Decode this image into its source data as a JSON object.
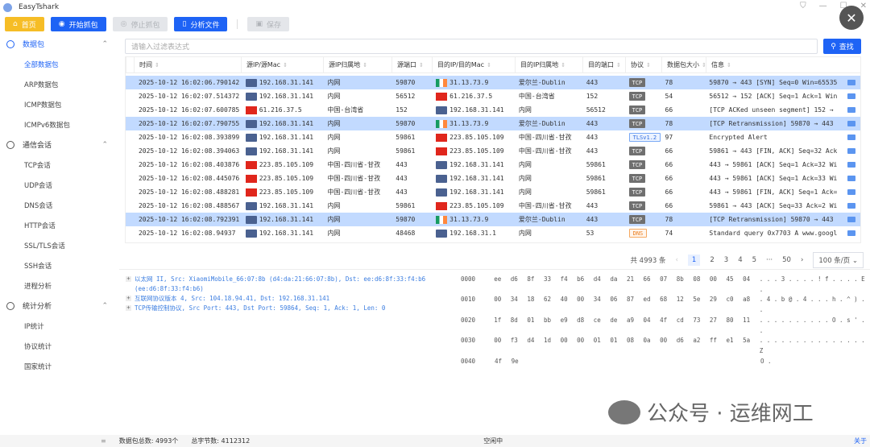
{
  "app": {
    "title": "EasyTshark"
  },
  "toolbar": {
    "home": "首页",
    "start": "开始抓包",
    "stop": "停止抓包",
    "analyze": "分析文件",
    "save": "保存"
  },
  "sidebar": {
    "groups": [
      {
        "label": "数据包",
        "active": true,
        "items": [
          "全部数据包",
          "ARP数据包",
          "ICMP数据包",
          "ICMPv6数据包"
        ]
      },
      {
        "label": "通信会话",
        "items": [
          "TCP会话",
          "UDP会话",
          "DNS会话",
          "HTTP会话",
          "SSL/TLS会话",
          "SSH会话",
          "进程分析"
        ]
      },
      {
        "label": "统计分析",
        "items": [
          "IP统计",
          "协议统计",
          "国家统计"
        ]
      }
    ]
  },
  "filter": {
    "placeholder": "请输入过滤表达式",
    "search": "查找"
  },
  "table": {
    "columns": [
      "时间",
      "源IP/源Mac",
      "源IP归属地",
      "源端口",
      "目的IP/目的Mac",
      "目的IP归属地",
      "目的端口",
      "协议",
      "数据包大小",
      "信息"
    ],
    "rows": [
      [
        "2025-10-12 16:02:06.790142",
        "pc",
        "192.168.31.141",
        "内网",
        "59870",
        "ie",
        "31.13.73.9",
        "爱尔兰-Dublin",
        "443",
        "TCP",
        "78",
        "59870 → 443 [SYN] Seq=0 Win=65535",
        true
      ],
      [
        "2025-10-12 16:02:07.514372",
        "pc",
        "192.168.31.141",
        "内网",
        "56512",
        "cn",
        "61.216.37.5",
        "中国-台湾省",
        "152",
        "TCP",
        "54",
        "56512 → 152 [ACK] Seq=1 Ack=1 Win",
        false
      ],
      [
        "2025-10-12 16:02:07.600785",
        "cn",
        "61.216.37.5",
        "中国-台湾省",
        "152",
        "pc",
        "192.168.31.141",
        "内网",
        "56512",
        "TCP",
        "66",
        "[TCP ACKed unseen segment] 152 →",
        false
      ],
      [
        "2025-10-12 16:02:07.790755",
        "pc",
        "192.168.31.141",
        "内网",
        "59870",
        "ie",
        "31.13.73.9",
        "爱尔兰-Dublin",
        "443",
        "TCP",
        "78",
        "[TCP Retransmission] 59870 → 443",
        true
      ],
      [
        "2025-10-12 16:02:08.393899",
        "pc",
        "192.168.31.141",
        "内网",
        "59861",
        "cn",
        "223.85.105.109",
        "中国-四川省-甘孜",
        "443",
        "TLSv1.2",
        "97",
        "Encrypted Alert",
        false
      ],
      [
        "2025-10-12 16:02:08.394063",
        "pc",
        "192.168.31.141",
        "内网",
        "59861",
        "cn",
        "223.85.105.109",
        "中国-四川省-甘孜",
        "443",
        "TCP",
        "66",
        "59861 → 443 [FIN, ACK] Seq=32 Ack",
        false
      ],
      [
        "2025-10-12 16:02:08.403876",
        "cn",
        "223.85.105.109",
        "中国-四川省-甘孜",
        "443",
        "pc",
        "192.168.31.141",
        "内网",
        "59861",
        "TCP",
        "66",
        "443 → 59861 [ACK] Seq=1 Ack=32 Wi",
        false
      ],
      [
        "2025-10-12 16:02:08.445076",
        "cn",
        "223.85.105.109",
        "中国-四川省-甘孜",
        "443",
        "pc",
        "192.168.31.141",
        "内网",
        "59861",
        "TCP",
        "66",
        "443 → 59861 [ACK] Seq=1 Ack=33 Wi",
        false
      ],
      [
        "2025-10-12 16:02:08.488281",
        "cn",
        "223.85.105.109",
        "中国-四川省-甘孜",
        "443",
        "pc",
        "192.168.31.141",
        "内网",
        "59861",
        "TCP",
        "66",
        "443 → 59861 [FIN, ACK] Seq=1 Ack=",
        false
      ],
      [
        "2025-10-12 16:02:08.488567",
        "pc",
        "192.168.31.141",
        "内网",
        "59861",
        "cn",
        "223.85.105.109",
        "中国-四川省-甘孜",
        "443",
        "TCP",
        "66",
        "59861 → 443 [ACK] Seq=33 Ack=2 Wi",
        false
      ],
      [
        "2025-10-12 16:02:08.792391",
        "pc",
        "192.168.31.141",
        "内网",
        "59870",
        "ie",
        "31.13.73.9",
        "爱尔兰-Dublin",
        "443",
        "TCP",
        "78",
        "[TCP Retransmission] 59870 → 443",
        true
      ],
      [
        "2025-10-12 16:02:08.94937",
        "pc",
        "192.168.31.141",
        "内网",
        "48468",
        "pc",
        "192.168.31.1",
        "内网",
        "53",
        "DNS",
        "74",
        "Standard query 0x7703 A www.googl",
        false
      ]
    ]
  },
  "pager": {
    "total": "共 4993 条",
    "pages": [
      "1",
      "2",
      "3",
      "4",
      "5",
      "···",
      "50"
    ],
    "current": "1",
    "size": "100 条/页"
  },
  "tree": [
    "以太网 II, Src: XiaomiMobile_66:07:8b (d4:da:21:66:07:8b), Dst: ee:d6:8f:33:f4:b6 (ee:d6:8f:33:f4:b6)",
    "互联网协议版本 4, Src: 104.18.94.41, Dst: 192.168.31.141",
    "TCP传输控制协议, Src Port: 443, Dst Port: 59864, Seq: 1, Ack: 1, Len: 0"
  ],
  "hex": [
    [
      "0000",
      "ee d6 8f 33 f4 b6 d4 da 21 66 07 8b 08 00 45 04",
      ". . . 3 . . . . ! f . . . . E ."
    ],
    [
      "0010",
      "00 34 18 62 40 00 34 06 87 ed 68 12 5e 29 c0 a8",
      ". 4 . b @ . 4 . . . h . ^ ) . ."
    ],
    [
      "0020",
      "1f 8d 01 bb e9 d8 ce de a9 04 4f cd 73 27 80 11",
      ". . . . . . . . . . O . s ' . ."
    ],
    [
      "0030",
      "00 f3 d4 1d 00 00 01 01 08 0a 00 d6 a2 ff e1 5a",
      ". . . . . . . . . . . . . . . Z"
    ],
    [
      "0040",
      "4f 9e",
      "O ."
    ]
  ],
  "watermark": "公众号 · 运维网工",
  "status": {
    "packets": "数据包总数: 4993个",
    "bytes": "总字节数: 4112312",
    "state": "空闲中",
    "about": "关于"
  },
  "colors": {
    "primary": "#1e63f5",
    "home": "#f6bd26",
    "selected_row": "#c2daff"
  }
}
